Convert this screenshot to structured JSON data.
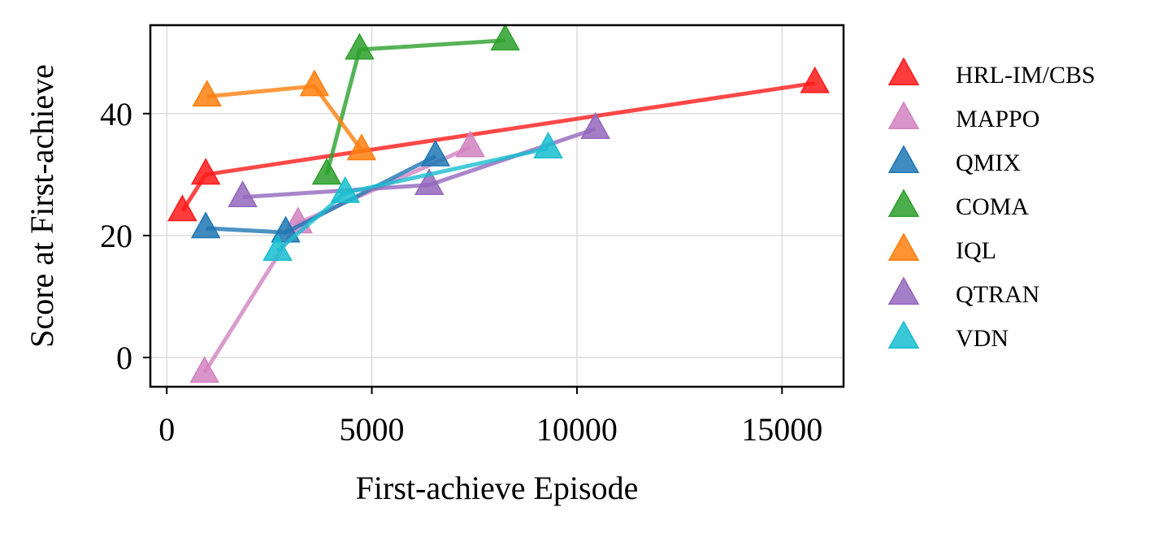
{
  "chart_data": {
    "type": "line",
    "title": "",
    "xlabel": "First-achieve Episode",
    "ylabel": "Score at First-achieve",
    "xlim": [
      -400,
      16500
    ],
    "ylim": [
      -4.8,
      54.5
    ],
    "xticks": [
      0,
      5000,
      10000,
      15000
    ],
    "xtick_labels": [
      "0",
      "5000",
      "10000",
      "15000"
    ],
    "yticks": [
      0,
      20,
      40
    ],
    "ytick_labels": [
      "0",
      "20",
      "40"
    ],
    "grid": true,
    "marker": "triangle",
    "legend_position": "outside-right",
    "series": [
      {
        "name": "HRL-IM/CBS",
        "color": "#ff1a1a",
        "points": [
          [
            380,
            24
          ],
          [
            950,
            30
          ],
          [
            15800,
            45
          ]
        ]
      },
      {
        "name": "MAPPO",
        "color": "#d283c1",
        "points": [
          [
            920,
            -2.5
          ],
          [
            3200,
            22
          ],
          [
            7400,
            34.5
          ]
        ]
      },
      {
        "name": "QMIX",
        "color": "#1f77b4",
        "points": [
          [
            950,
            21.2
          ],
          [
            2900,
            20.5
          ],
          [
            6550,
            33
          ]
        ]
      },
      {
        "name": "COMA",
        "color": "#2ca02c",
        "points": [
          [
            3900,
            30
          ],
          [
            4700,
            50.5
          ],
          [
            8250,
            52
          ]
        ]
      },
      {
        "name": "IQL",
        "color": "#ff7f0e",
        "points": [
          [
            980,
            42.8
          ],
          [
            3600,
            44.5
          ],
          [
            4750,
            34
          ]
        ]
      },
      {
        "name": "QTRAN",
        "color": "#9467bd",
        "points": [
          [
            1850,
            26.3
          ],
          [
            6400,
            28.3
          ],
          [
            10450,
            37.5
          ]
        ]
      },
      {
        "name": "VDN",
        "color": "#17becf",
        "points": [
          [
            2700,
            17.5
          ],
          [
            4350,
            27
          ],
          [
            9300,
            34.3
          ]
        ]
      }
    ]
  }
}
